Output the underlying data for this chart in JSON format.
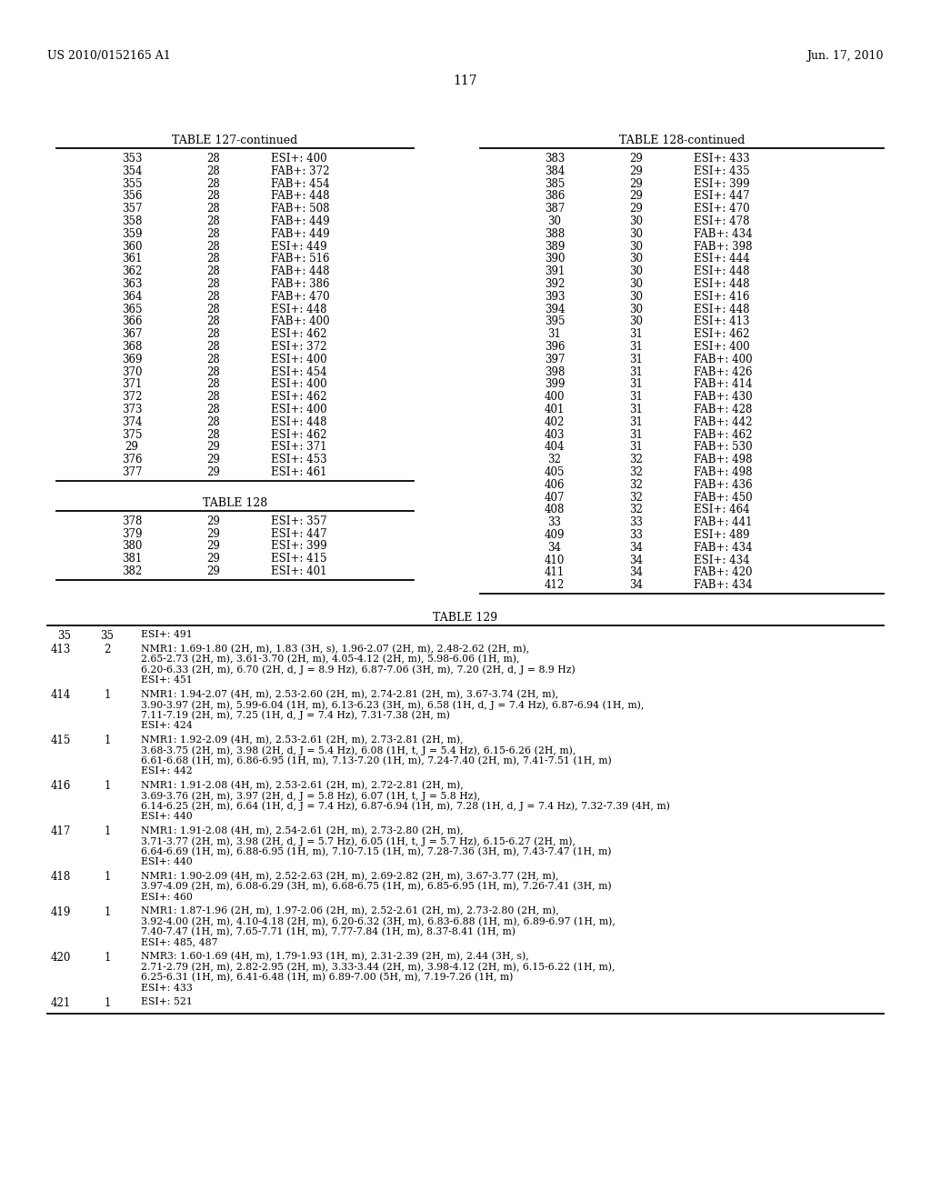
{
  "header_left": "US 2010/0152165 A1",
  "header_right": "Jun. 17, 2010",
  "page_number": "117",
  "background_color": "#ffffff",
  "table127_title": "TABLE 127-continued",
  "table127_rows": [
    [
      "353",
      "28",
      "ESI+: 400"
    ],
    [
      "354",
      "28",
      "FAB+: 372"
    ],
    [
      "355",
      "28",
      "FAB+: 454"
    ],
    [
      "356",
      "28",
      "FAB+: 448"
    ],
    [
      "357",
      "28",
      "FAB+: 508"
    ],
    [
      "358",
      "28",
      "FAB+: 449"
    ],
    [
      "359",
      "28",
      "FAB+: 449"
    ],
    [
      "360",
      "28",
      "ESI+: 449"
    ],
    [
      "361",
      "28",
      "FAB+: 516"
    ],
    [
      "362",
      "28",
      "FAB+: 448"
    ],
    [
      "363",
      "28",
      "FAB+: 386"
    ],
    [
      "364",
      "28",
      "FAB+: 470"
    ],
    [
      "365",
      "28",
      "ESI+: 448"
    ],
    [
      "366",
      "28",
      "FAB+: 400"
    ],
    [
      "367",
      "28",
      "ESI+: 462"
    ],
    [
      "368",
      "28",
      "ESI+: 372"
    ],
    [
      "369",
      "28",
      "ESI+: 400"
    ],
    [
      "370",
      "28",
      "ESI+: 454"
    ],
    [
      "371",
      "28",
      "ESI+: 400"
    ],
    [
      "372",
      "28",
      "ESI+: 462"
    ],
    [
      "373",
      "28",
      "ESI+: 400"
    ],
    [
      "374",
      "28",
      "ESI+: 448"
    ],
    [
      "375",
      "28",
      "ESI+: 462"
    ],
    [
      "29",
      "29",
      "ESI+: 371"
    ],
    [
      "376",
      "29",
      "ESI+: 453"
    ],
    [
      "377",
      "29",
      "ESI+: 461"
    ]
  ],
  "table128_title": "TABLE 128",
  "table128_rows": [
    [
      "378",
      "29",
      "ESI+: 357"
    ],
    [
      "379",
      "29",
      "ESI+: 447"
    ],
    [
      "380",
      "29",
      "ESI+: 399"
    ],
    [
      "381",
      "29",
      "ESI+: 415"
    ],
    [
      "382",
      "29",
      "ESI+: 401"
    ]
  ],
  "table128cont_title": "TABLE 128-continued",
  "table128cont_rows": [
    [
      "383",
      "29",
      "ESI+: 433"
    ],
    [
      "384",
      "29",
      "ESI+: 435"
    ],
    [
      "385",
      "29",
      "ESI+: 399"
    ],
    [
      "386",
      "29",
      "ESI+: 447"
    ],
    [
      "387",
      "29",
      "ESI+: 470"
    ],
    [
      "30",
      "30",
      "ESI+: 478"
    ],
    [
      "388",
      "30",
      "FAB+: 434"
    ],
    [
      "389",
      "30",
      "FAB+: 398"
    ],
    [
      "390",
      "30",
      "ESI+: 444"
    ],
    [
      "391",
      "30",
      "ESI+: 448"
    ],
    [
      "392",
      "30",
      "ESI+: 448"
    ],
    [
      "393",
      "30",
      "ESI+: 416"
    ],
    [
      "394",
      "30",
      "ESI+: 448"
    ],
    [
      "395",
      "30",
      "ESI+: 413"
    ],
    [
      "31",
      "31",
      "ESI+: 462"
    ],
    [
      "396",
      "31",
      "ESI+: 400"
    ],
    [
      "397",
      "31",
      "FAB+: 400"
    ],
    [
      "398",
      "31",
      "FAB+: 426"
    ],
    [
      "399",
      "31",
      "FAB+: 414"
    ],
    [
      "400",
      "31",
      "FAB+: 430"
    ],
    [
      "401",
      "31",
      "FAB+: 428"
    ],
    [
      "402",
      "31",
      "FAB+: 442"
    ],
    [
      "403",
      "31",
      "FAB+: 462"
    ],
    [
      "404",
      "31",
      "FAB+: 530"
    ],
    [
      "32",
      "32",
      "FAB+: 498"
    ],
    [
      "405",
      "32",
      "FAB+: 498"
    ],
    [
      "406",
      "32",
      "FAB+: 436"
    ],
    [
      "407",
      "32",
      "FAB+: 450"
    ],
    [
      "408",
      "32",
      "ESI+: 464"
    ],
    [
      "33",
      "33",
      "FAB+: 441"
    ],
    [
      "409",
      "33",
      "ESI+: 489"
    ],
    [
      "34",
      "34",
      "FAB+: 434"
    ],
    [
      "410",
      "34",
      "ESI+: 434"
    ],
    [
      "411",
      "34",
      "FAB+: 420"
    ],
    [
      "412",
      "34",
      "FAB+: 434"
    ]
  ],
  "table129_title": "TABLE 129",
  "table129_rows": [
    [
      "35",
      "35",
      [
        "ESI+: 491"
      ]
    ],
    [
      "413",
      "2",
      [
        "NMR1: 1.69-1.80 (2H, m), 1.83 (3H, s), 1.96-2.07 (2H, m), 2.48-2.62 (2H, m),",
        "2.65-2.73 (2H, m), 3.61-3.70 (2H, m), 4.05-4.12 (2H, m), 5.98-6.06 (1H, m),",
        "6.20-6.33 (2H, m), 6.70 (2H, d, J = 8.9 Hz), 6.87-7.06 (3H, m), 7.20 (2H, d, J = 8.9 Hz)",
        "ESI+: 451"
      ]
    ],
    [
      "414",
      "1",
      [
        "NMR1: 1.94-2.07 (4H, m), 2.53-2.60 (2H, m), 2.74-2.81 (2H, m), 3.67-3.74 (2H, m),",
        "3.90-3.97 (2H, m), 5.99-6.04 (1H, m), 6.13-6.23 (3H, m), 6.58 (1H, d, J = 7.4 Hz), 6.87-6.94 (1H, m),",
        "7.11-7.19 (2H, m), 7.25 (1H, d, J = 7.4 Hz), 7.31-7.38 (2H, m)",
        "ESI+: 424"
      ]
    ],
    [
      "415",
      "1",
      [
        "NMR1: 1.92-2.09 (4H, m), 2.53-2.61 (2H, m), 2.73-2.81 (2H, m),",
        "3.68-3.75 (2H, m), 3.98 (2H, d, J = 5.4 Hz), 6.08 (1H, t, J = 5.4 Hz), 6.15-6.26 (2H, m),",
        "6.61-6.68 (1H, m), 6.86-6.95 (1H, m), 7.13-7.20 (1H, m), 7.24-7.40 (2H, m), 7.41-7.51 (1H, m)",
        "ESI+: 442"
      ]
    ],
    [
      "416",
      "1",
      [
        "NMR1: 1.91-2.08 (4H, m), 2.53-2.61 (2H, m), 2.72-2.81 (2H, m),",
        "3.69-3.76 (2H, m), 3.97 (2H, d, J = 5.8 Hz), 6.07 (1H, t, J = 5.8 Hz),",
        "6.14-6.25 (2H, m), 6.64 (1H, d, J = 7.4 Hz), 6.87-6.94 (1H, m), 7.28 (1H, d, J = 7.4 Hz), 7.32-7.39 (4H, m)",
        "ESI+: 440"
      ]
    ],
    [
      "417",
      "1",
      [
        "NMR1: 1.91-2.08 (4H, m), 2.54-2.61 (2H, m), 2.73-2.80 (2H, m),",
        "3.71-3.77 (2H, m), 3.98 (2H, d, J = 5.7 Hz), 6.05 (1H, t, J = 5.7 Hz), 6.15-6.27 (2H, m),",
        "6.64-6.69 (1H, m), 6.88-6.95 (1H, m), 7.10-7.15 (1H, m), 7.28-7.36 (3H, m), 7.43-7.47 (1H, m)",
        "ESI+: 440"
      ]
    ],
    [
      "418",
      "1",
      [
        "NMR1: 1.90-2.09 (4H, m), 2.52-2.63 (2H, m), 2.69-2.82 (2H, m), 3.67-3.77 (2H, m),",
        "3.97-4.09 (2H, m), 6.08-6.29 (3H, m), 6.68-6.75 (1H, m), 6.85-6.95 (1H, m), 7.26-7.41 (3H, m)",
        "ESI+: 460"
      ]
    ],
    [
      "419",
      "1",
      [
        "NMR1: 1.87-1.96 (2H, m), 1.97-2.06 (2H, m), 2.52-2.61 (2H, m), 2.73-2.80 (2H, m),",
        "3.92-4.00 (2H, m), 4.10-4.18 (2H, m), 6.20-6.32 (3H, m), 6.83-6.88 (1H, m), 6.89-6.97 (1H, m),",
        "7.40-7.47 (1H, m), 7.65-7.71 (1H, m), 7.77-7.84 (1H, m), 8.37-8.41 (1H, m)",
        "ESI+: 485, 487"
      ]
    ],
    [
      "420",
      "1",
      [
        "NMR3: 1.60-1.69 (4H, m), 1.79-1.93 (1H, m), 2.31-2.39 (2H, m), 2.44 (3H, s),",
        "2.71-2.79 (2H, m), 2.82-2.95 (2H, m), 3.33-3.44 (2H, m), 3.98-4.12 (2H, m), 6.15-6.22 (1H, m),",
        "6.25-6.31 (1H, m), 6.41-6.48 (1H, m) 6.89-7.00 (5H, m), 7.19-7.26 (1H, m)",
        "ESI+: 433"
      ]
    ],
    [
      "421",
      "1",
      [
        "ESI+: 521"
      ]
    ]
  ]
}
